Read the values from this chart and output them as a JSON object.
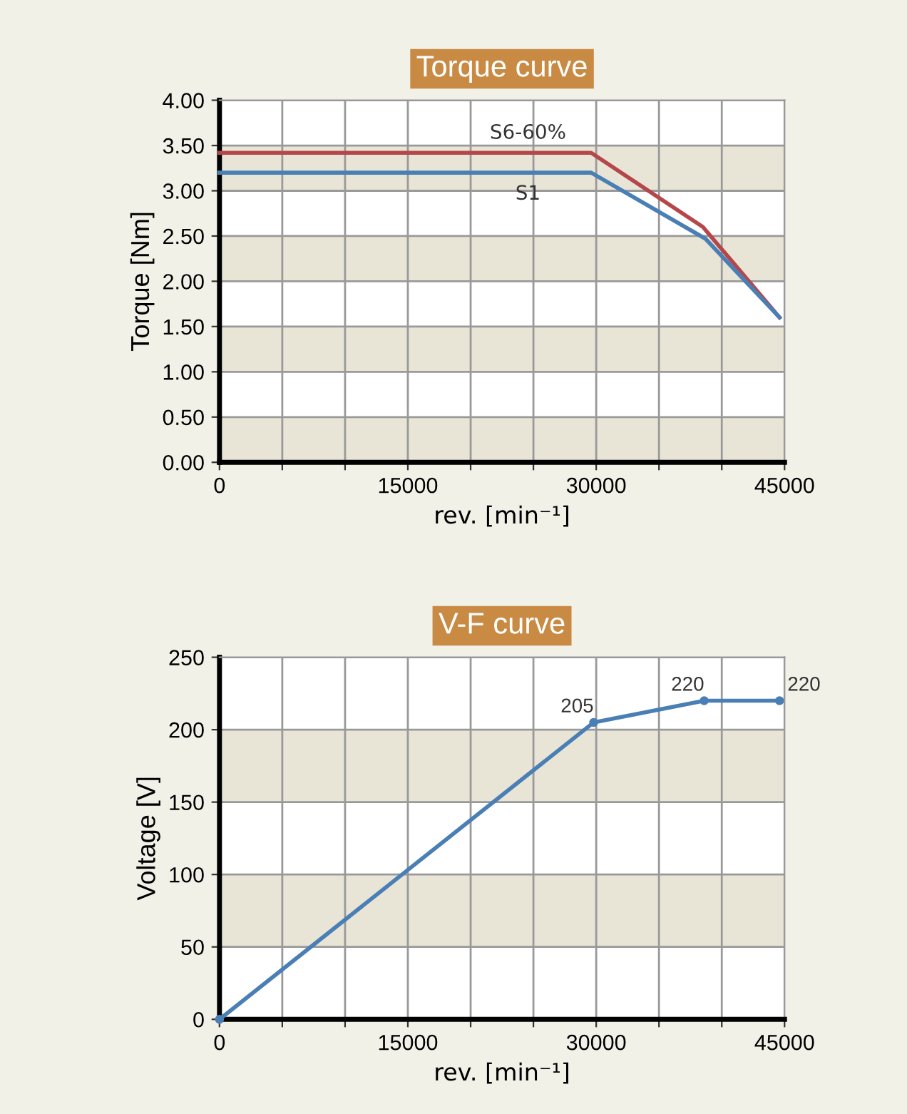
{
  "chart_data": [
    {
      "type": "line",
      "title": "Torque curve",
      "xlabel": "rev. [min⁻¹]",
      "ylabel": "Torque [Nm]",
      "xlim": [
        0,
        45000
      ],
      "ylim": [
        0,
        4
      ],
      "xticks": [
        0,
        {
          "value": 5000,
          "label": null
        },
        {
          "value": 10000,
          "label": null
        },
        15000,
        {
          "value": 20000,
          "label": null
        },
        {
          "value": 25000,
          "label": null
        },
        30000,
        {
          "value": 35000,
          "label": null
        },
        {
          "value": 40000,
          "label": null
        },
        45000
      ],
      "yticks": [
        {
          "value": 0,
          "label": "0.00"
        },
        {
          "value": 0.5,
          "label": "0.50"
        },
        {
          "value": 1,
          "label": "1.00"
        },
        {
          "value": 1.5,
          "label": "1.50"
        },
        {
          "value": 2,
          "label": "2.00"
        },
        {
          "value": 2.5,
          "label": "2.50"
        },
        {
          "value": 3,
          "label": "3.00"
        },
        {
          "value": 3.5,
          "label": "3.50"
        },
        {
          "value": 4,
          "label": "4.00"
        }
      ],
      "grid": true,
      "legend": false,
      "marker": "none",
      "line_style": "solid",
      "bands": [
        {
          "axis": "y",
          "from": 0,
          "to": 0.5,
          "color": "#e8e5d7"
        },
        {
          "axis": "y",
          "from": 1,
          "to": 1.5,
          "color": "#e8e5d7"
        },
        {
          "axis": "y",
          "from": 2,
          "to": 2.5,
          "color": "#e8e5d7"
        },
        {
          "axis": "y",
          "from": 3,
          "to": 3.5,
          "color": "#e8e5d7"
        }
      ],
      "series": [
        {
          "name": "S6-60%",
          "color": "#b5474b",
          "x": [
            0,
            29600,
            38500,
            44600
          ],
          "values": [
            3.42,
            3.42,
            2.6,
            1.6
          ]
        },
        {
          "name": "S1",
          "color": "#4a7fb5",
          "x": [
            0,
            29600,
            38700,
            44600
          ],
          "values": [
            3.2,
            3.2,
            2.47,
            1.6
          ]
        }
      ]
    },
    {
      "type": "line",
      "title": "V-F curve",
      "xlabel": "rev. [min⁻¹]",
      "ylabel": "Voltage [V]",
      "xlim": [
        0,
        45000
      ],
      "ylim": [
        0,
        250
      ],
      "xticks": [
        0,
        {
          "value": 5000,
          "label": null
        },
        {
          "value": 10000,
          "label": null
        },
        15000,
        {
          "value": 20000,
          "label": null
        },
        {
          "value": 25000,
          "label": null
        },
        30000,
        {
          "value": 35000,
          "label": null
        },
        {
          "value": 40000,
          "label": null
        },
        45000
      ],
      "yticks": [
        0,
        50,
        100,
        150,
        200,
        250
      ],
      "grid": true,
      "legend": false,
      "marker": "circle",
      "line_style": "solid",
      "bands": [
        {
          "axis": "y",
          "from": 50,
          "to": 100,
          "color": "#e8e5d7"
        },
        {
          "axis": "y",
          "from": 150,
          "to": 200,
          "color": "#e8e5d7"
        }
      ],
      "series": [
        {
          "color": "#4a7fb5",
          "x": [
            0,
            29800,
            38600,
            44600
          ],
          "values": [
            0,
            205,
            220,
            220
          ],
          "value_labels": [
            null,
            "205",
            "220",
            "220"
          ]
        }
      ]
    }
  ]
}
